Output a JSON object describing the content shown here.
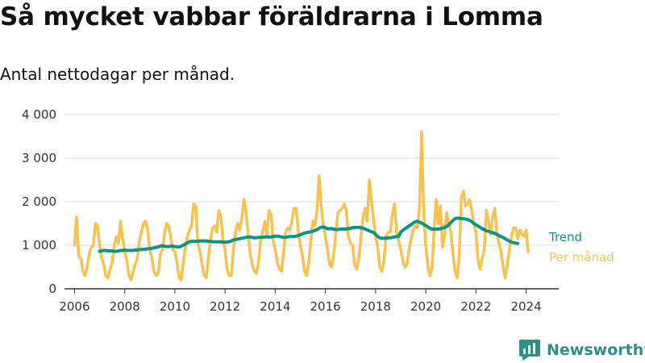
{
  "title": "Så mycket vabbar föräldrarna i Lomma",
  "subtitle": "Antal nettodagar per månad.",
  "brand": "Newsworthy",
  "colors": {
    "monthly": "#f9c24e",
    "trend": "#0f9384",
    "grid": "#dddddd",
    "axis": "#333333",
    "brand": "#2e8f87"
  },
  "chart_data": {
    "type": "line",
    "title": "Så mycket vabbar föräldrarna i Lomma",
    "subtitle": "Antal nettodagar per månad.",
    "xlabel": "",
    "ylabel": "",
    "x_unit": "decimal year, monthly observations",
    "xlim": [
      2005.6,
      2025.3
    ],
    "ylim": [
      0,
      4000
    ],
    "x_ticks": [
      2006,
      2008,
      2010,
      2012,
      2014,
      2016,
      2018,
      2020,
      2022,
      2024
    ],
    "x_tick_labels": [
      "2006",
      "2008",
      "2010",
      "2012",
      "2014",
      "2016",
      "2018",
      "2020",
      "2022",
      "2024"
    ],
    "y_ticks": [
      0,
      1000,
      2000,
      3000,
      4000
    ],
    "y_tick_labels": [
      "0",
      "1 000",
      "2 000",
      "3 000",
      "4 000"
    ],
    "grid": true,
    "legend": "end-of-line labels",
    "series": [
      {
        "name": "Per månad",
        "start": 2006.0,
        "step": 0.0833333,
        "values": [
          1000,
          1650,
          750,
          700,
          400,
          300,
          500,
          800,
          950,
          1000,
          1500,
          1450,
          1000,
          700,
          550,
          300,
          250,
          450,
          600,
          1000,
          1200,
          1050,
          1550,
          1150,
          850,
          650,
          300,
          200,
          400,
          550,
          700,
          1100,
          1300,
          1500,
          1550,
          1350,
          900,
          700,
          400,
          300,
          350,
          800,
          900,
          1250,
          1500,
          1450,
          1200,
          900,
          850,
          600,
          250,
          200,
          600,
          950,
          1200,
          1350,
          1450,
          1950,
          1900,
          1050,
          850,
          550,
          300,
          250,
          700,
          1100,
          1400,
          1450,
          1300,
          1800,
          1650,
          1100,
          900,
          450,
          300,
          300,
          900,
          1300,
          1500,
          1350,
          1600,
          2050,
          1800,
          1250,
          800,
          550,
          400,
          350,
          600,
          1100,
          1300,
          1550,
          1250,
          1800,
          1700,
          1100,
          900,
          600,
          450,
          400,
          850,
          1300,
          1400,
          1350,
          1550,
          1850,
          1850,
          1350,
          1000,
          750,
          400,
          300,
          600,
          1100,
          1550,
          1450,
          1800,
          2600,
          1900,
          1450,
          1200,
          900,
          550,
          500,
          800,
          1300,
          1750,
          1800,
          1850,
          1950,
          1800,
          1200,
          1050,
          1000,
          550,
          450,
          700,
          1200,
          1650,
          1850,
          1550,
          2500,
          2000,
          1600,
          1200,
          950,
          500,
          400,
          650,
          1200,
          1300,
          1300,
          1700,
          1950,
          1300,
          1100,
          900,
          650,
          500,
          550,
          900,
          1150,
          1350,
          1450,
          1400,
          1850,
          3600,
          1750,
          1000,
          500,
          300,
          500,
          1400,
          2050,
          1500,
          1900,
          950,
          1200,
          1750,
          1500,
          1300,
          800,
          400,
          250,
          750,
          2100,
          2250,
          1900,
          1950,
          2050,
          1800,
          1500,
          1300,
          650,
          450,
          700,
          900,
          1800,
          1550,
          1250,
          1650,
          1850,
          1300,
          1050,
          850,
          500,
          250,
          550,
          900,
          1200,
          1400,
          1400,
          1150,
          1350,
          1250,
          1200,
          1350,
          850
        ]
      },
      {
        "name": "Trend",
        "start": 2007.0,
        "step": 0.0833333,
        "values": [
          860,
          870,
          880,
          880,
          870,
          870,
          870,
          860,
          860,
          870,
          880,
          880,
          890,
          880,
          880,
          880,
          880,
          890,
          890,
          900,
          900,
          910,
          910,
          920,
          920,
          930,
          940,
          950,
          960,
          980,
          990,
          980,
          970,
          970,
          980,
          980,
          970,
          960,
          960,
          980,
          1000,
          1030,
          1060,
          1080,
          1090,
          1090,
          1090,
          1090,
          1100,
          1100,
          1100,
          1100,
          1090,
          1090,
          1080,
          1080,
          1080,
          1080,
          1080,
          1070,
          1070,
          1070,
          1080,
          1100,
          1120,
          1130,
          1140,
          1150,
          1160,
          1170,
          1180,
          1190,
          1190,
          1180,
          1170,
          1170,
          1180,
          1180,
          1180,
          1190,
          1190,
          1190,
          1190,
          1200,
          1210,
          1210,
          1200,
          1190,
          1180,
          1180,
          1190,
          1200,
          1200,
          1200,
          1210,
          1220,
          1240,
          1260,
          1280,
          1290,
          1300,
          1310,
          1320,
          1340,
          1360,
          1390,
          1410,
          1420,
          1400,
          1380,
          1380,
          1380,
          1370,
          1360,
          1360,
          1370,
          1370,
          1370,
          1370,
          1380,
          1390,
          1400,
          1410,
          1410,
          1410,
          1400,
          1390,
          1370,
          1350,
          1330,
          1310,
          1290,
          1250,
          1200,
          1170,
          1160,
          1160,
          1160,
          1170,
          1170,
          1180,
          1190,
          1200,
          1200,
          1300,
          1340,
          1380,
          1410,
          1440,
          1470,
          1510,
          1540,
          1550,
          1530,
          1510,
          1480,
          1450,
          1420,
          1390,
          1370,
          1370,
          1370,
          1370,
          1380,
          1390,
          1410,
          1430,
          1470,
          1520,
          1570,
          1610,
          1620,
          1620,
          1610,
          1610,
          1600,
          1590,
          1570,
          1540,
          1500,
          1470,
          1440,
          1410,
          1380,
          1360,
          1330,
          1320,
          1300,
          1290,
          1270,
          1250,
          1220,
          1200,
          1180,
          1150,
          1120,
          1090,
          1070,
          1060,
          1050,
          1040
        ]
      }
    ]
  }
}
